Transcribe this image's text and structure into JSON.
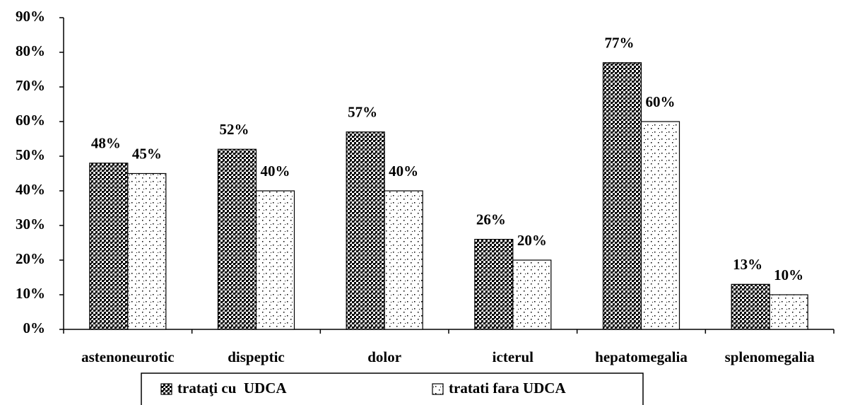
{
  "chart_data": {
    "type": "bar",
    "categories": [
      "astenoneurotic",
      "dispeptic",
      "dolor",
      "icterul",
      "hepatomegalia",
      "splenomegalia"
    ],
    "series": [
      {
        "name": "trataţi cu  UDCA",
        "color": "#000000",
        "values": [
          48,
          52,
          57,
          26,
          77,
          13
        ],
        "value_labels": [
          "48%",
          "52%",
          "57%",
          "26%",
          "77%",
          "13%"
        ]
      },
      {
        "name": "tratati fara UDCA",
        "color": "#ffffff",
        "values": [
          45,
          40,
          40,
          20,
          60,
          10
        ],
        "value_labels": [
          "45%",
          "40%",
          "40%",
          "20%",
          "60%",
          "10%"
        ]
      }
    ],
    "ylim": [
      0,
      90
    ],
    "yticks": [
      {
        "value": 0,
        "label": "0%"
      },
      {
        "value": 10,
        "label": "10%"
      },
      {
        "value": 20,
        "label": "20%"
      },
      {
        "value": 30,
        "label": "30%"
      },
      {
        "value": 40,
        "label": "40%"
      },
      {
        "value": 50,
        "label": "50%"
      },
      {
        "value": 60,
        "label": "60%"
      },
      {
        "value": 70,
        "label": "70%"
      },
      {
        "value": 80,
        "label": "80%"
      },
      {
        "value": 90,
        "label": "90%"
      }
    ],
    "legend": "bottom"
  }
}
